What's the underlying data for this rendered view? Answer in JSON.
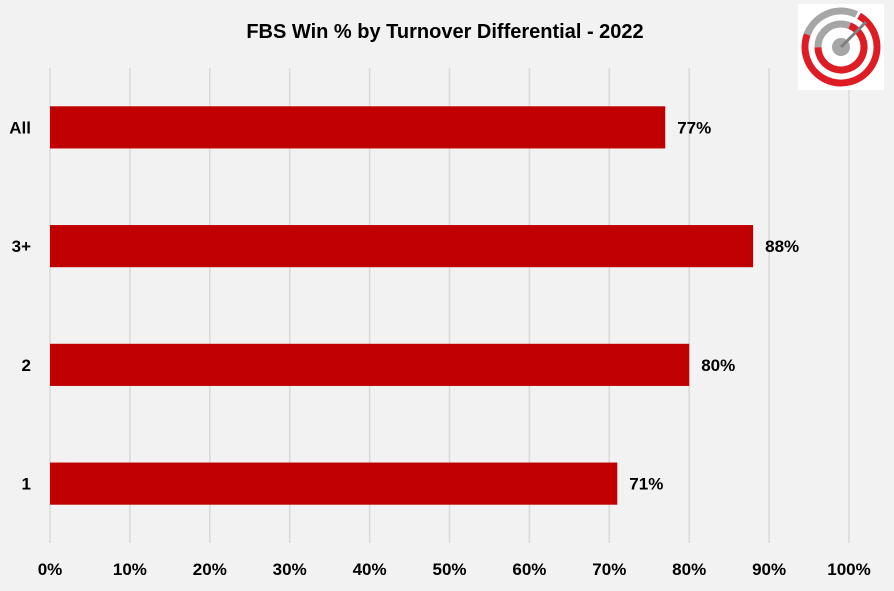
{
  "chart_data": {
    "type": "bar",
    "orientation": "horizontal",
    "title": "FBS Win % by Turnover Differential - 2022",
    "xlabel": "",
    "ylabel": "",
    "categories": [
      "All",
      "3+",
      "2",
      "1"
    ],
    "values": [
      77,
      88,
      80,
      71
    ],
    "data_labels": [
      "77%",
      "88%",
      "80%",
      "71%"
    ],
    "xlim": [
      0,
      100
    ],
    "x_ticks": [
      0,
      10,
      20,
      30,
      40,
      50,
      60,
      70,
      80,
      90,
      100
    ],
    "x_tick_labels": [
      "0%",
      "10%",
      "20%",
      "30%",
      "40%",
      "50%",
      "60%",
      "70%",
      "80%",
      "90%",
      "100%"
    ],
    "grid": "vertical",
    "legend": "none",
    "bar_color": "#c00000",
    "background_color": "#f2f2f2",
    "logo_icon": "target-logo-icon"
  }
}
